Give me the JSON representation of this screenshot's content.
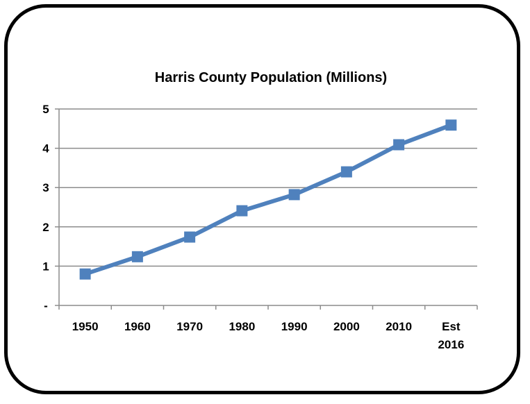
{
  "chart_data": {
    "type": "line",
    "title": "Harris County Population (Millions)",
    "categories": [
      [
        "1950"
      ],
      [
        "1960"
      ],
      [
        "1970"
      ],
      [
        "1980"
      ],
      [
        "1990"
      ],
      [
        "2000"
      ],
      [
        "2010"
      ],
      [
        "Est",
        "2016"
      ]
    ],
    "series": [
      {
        "values": [
          0.8,
          1.24,
          1.74,
          2.41,
          2.82,
          3.4,
          4.09,
          4.59
        ],
        "color": "#4f81bd"
      }
    ],
    "y_ticks": [
      {
        "value": 0,
        "label": "-"
      },
      {
        "value": 1,
        "label": "1"
      },
      {
        "value": 2,
        "label": "2"
      },
      {
        "value": 3,
        "label": "3"
      },
      {
        "value": 4,
        "label": "4"
      },
      {
        "value": 5,
        "label": "5"
      }
    ],
    "ylim": [
      0,
      5
    ],
    "grid": true,
    "legend": "none"
  }
}
